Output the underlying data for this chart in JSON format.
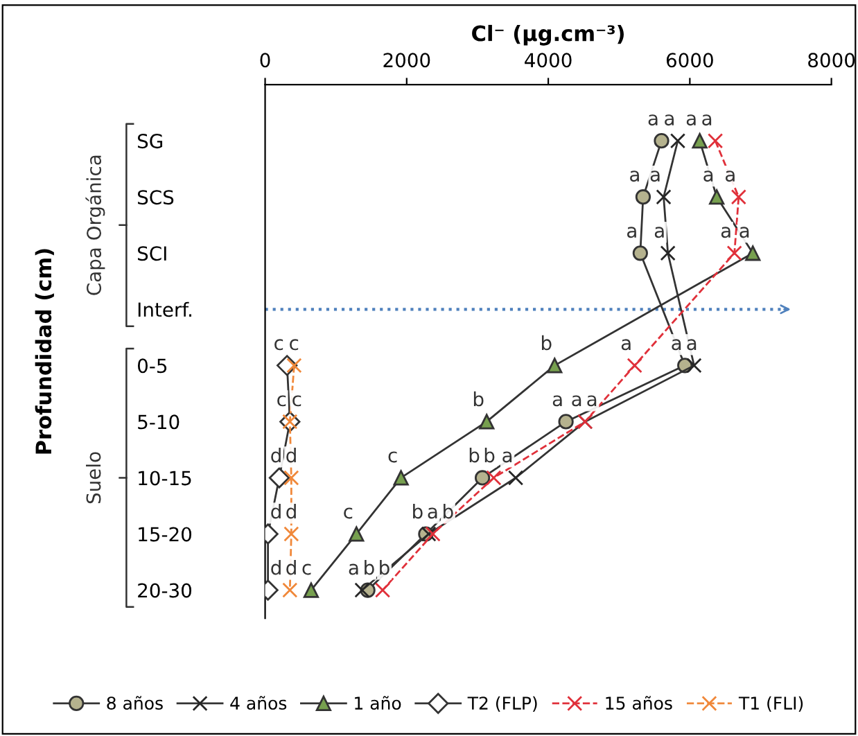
{
  "chart_data": {
    "type": "line",
    "orientation": "horizontal",
    "xlabel": "Cl⁻ (µg.cm⁻³)",
    "ylabel": "Profundidad (cm)",
    "categories": [
      "SG",
      "SCS",
      "SCI",
      "Interf.",
      "0-5",
      "5-10",
      "10-15",
      "15-20",
      "20-30"
    ],
    "xlim": [
      0,
      8000
    ],
    "xticks": [
      0,
      2000,
      4000,
      6000,
      8000
    ],
    "series": [
      {
        "name": "8 años",
        "color": "#b5b28e",
        "marker": "circle",
        "line_style": "solid",
        "values": [
          5600,
          5340,
          5300,
          null,
          5930,
          4250,
          3070,
          2270,
          1450
        ],
        "value_labels": [
          "a",
          "a",
          "a",
          null,
          "a",
          "a",
          "b",
          "b",
          "b"
        ]
      },
      {
        "name": "4 años",
        "color": "#262626",
        "marker": "cross",
        "line_style": "solid",
        "values": [
          5830,
          5630,
          5690,
          null,
          6060,
          4520,
          3540,
          2310,
          1370
        ],
        "value_labels": [
          "a",
          "a",
          "a",
          null,
          "a",
          "a",
          "a",
          "a",
          "a"
        ]
      },
      {
        "name": "1 año",
        "color": "#77a04f",
        "marker": "triangle",
        "line_style": "solid",
        "values": [
          6140,
          6380,
          6890,
          null,
          4090,
          3130,
          1920,
          1290,
          650
        ],
        "value_labels": [
          "a",
          "a",
          "a",
          null,
          "b",
          "b",
          "c",
          "c",
          "c"
        ]
      },
      {
        "name": "T2 (FLP)",
        "color": "#ffffff",
        "marker": "diamond",
        "line_style": "solid",
        "values": [
          null,
          null,
          null,
          null,
          310,
          350,
          200,
          40,
          40
        ],
        "value_labels": [
          null,
          null,
          null,
          null,
          "c",
          "c",
          "d",
          "d",
          "d"
        ]
      },
      {
        "name": "15 años",
        "color": "#e0303a",
        "marker": "cross",
        "line_style": "dashed",
        "values": [
          6360,
          6690,
          6630,
          null,
          5220,
          4520,
          3230,
          2370,
          1660
        ],
        "value_labels": [
          "a",
          "a",
          "a",
          null,
          "a",
          "a",
          "b",
          "b",
          "b"
        ]
      },
      {
        "name": "T1 (FLI)",
        "color": "#f0883a",
        "marker": "cross",
        "line_style": "dashed",
        "values": [
          null,
          null,
          null,
          null,
          410,
          350,
          370,
          370,
          350
        ],
        "value_labels": [
          null,
          null,
          null,
          null,
          "c",
          "c",
          "d",
          "d",
          "d"
        ]
      }
    ],
    "ref_lines": [
      {
        "axis": "y",
        "value": "Interf.",
        "color": "#4f81bd",
        "line_style": "dotted"
      }
    ],
    "legend": "bottom",
    "annotations": [
      "Capa Orgánica",
      "Suelo"
    ]
  }
}
